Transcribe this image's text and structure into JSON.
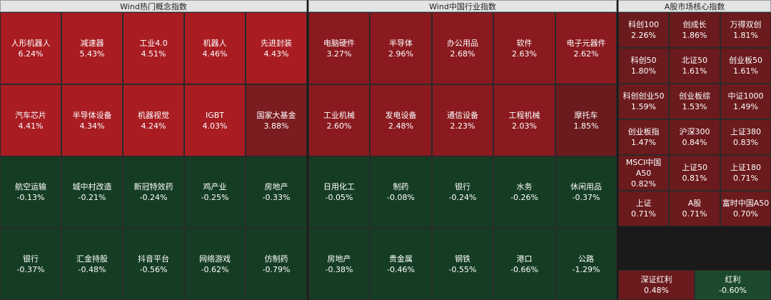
{
  "panels": {
    "concept": {
      "title": "Wind热门概念指数",
      "rows": [
        [
          {
            "name": "人形机器人",
            "pct": "6.24%"
          },
          {
            "name": "减速器",
            "pct": "5.43%"
          },
          {
            "name": "工业4.0",
            "pct": "4.51%"
          },
          {
            "name": "机器人",
            "pct": "4.46%"
          },
          {
            "name": "先进封装",
            "pct": "4.43%"
          }
        ],
        [
          {
            "name": "汽车芯片",
            "pct": "4.41%"
          },
          {
            "name": "半导体设备",
            "pct": "4.34%"
          },
          {
            "name": "机器视觉",
            "pct": "4.24%"
          },
          {
            "name": "IGBT",
            "pct": "4.03%"
          },
          {
            "name": "国家大基金",
            "pct": "3.88%"
          }
        ],
        [
          {
            "name": "航空运输",
            "pct": "-0.13%"
          },
          {
            "name": "城中村改造",
            "pct": "-0.21%"
          },
          {
            "name": "新冠特效药",
            "pct": "-0.24%"
          },
          {
            "name": "鸡产业",
            "pct": "-0.25%"
          },
          {
            "name": "房地产",
            "pct": "-0.33%"
          }
        ],
        [
          {
            "name": "银行",
            "pct": "-0.37%"
          },
          {
            "name": "汇金持股",
            "pct": "-0.48%"
          },
          {
            "name": "抖音平台",
            "pct": "-0.56%"
          },
          {
            "name": "网络游戏",
            "pct": "-0.62%"
          },
          {
            "name": "仿制药",
            "pct": "-0.79%"
          }
        ]
      ]
    },
    "industry": {
      "title": "Wind中国行业指数",
      "rows": [
        [
          {
            "name": "电脑硬件",
            "pct": "3.27%"
          },
          {
            "name": "半导体",
            "pct": "2.96%"
          },
          {
            "name": "办公用品",
            "pct": "2.68%"
          },
          {
            "name": "软件",
            "pct": "2.63%"
          },
          {
            "name": "电子元器件",
            "pct": "2.62%"
          }
        ],
        [
          {
            "name": "工业机械",
            "pct": "2.60%"
          },
          {
            "name": "发电设备",
            "pct": "2.48%"
          },
          {
            "name": "通信设备",
            "pct": "2.23%"
          },
          {
            "name": "工程机械",
            "pct": "2.03%"
          },
          {
            "name": "摩托车",
            "pct": "1.85%"
          }
        ],
        [
          {
            "name": "日用化工",
            "pct": "-0.05%"
          },
          {
            "name": "制药",
            "pct": "-0.08%"
          },
          {
            "name": "银行",
            "pct": "-0.24%"
          },
          {
            "name": "水务",
            "pct": "-0.26%"
          },
          {
            "name": "休闲用品",
            "pct": "-0.37%"
          }
        ],
        [
          {
            "name": "房地产",
            "pct": "-0.38%"
          },
          {
            "name": "贵金属",
            "pct": "-0.46%"
          },
          {
            "name": "钢铁",
            "pct": "-0.55%"
          },
          {
            "name": "港口",
            "pct": "-0.66%"
          },
          {
            "name": "公路",
            "pct": "-1.29%"
          }
        ]
      ]
    },
    "core": {
      "title": "A股市场核心指数",
      "rows": [
        [
          {
            "name": "科创100",
            "pct": "2.26%"
          },
          {
            "name": "创成长",
            "pct": "1.86%"
          },
          {
            "name": "万得双创",
            "pct": "1.81%"
          }
        ],
        [
          {
            "name": "科创50",
            "pct": "1.80%"
          },
          {
            "name": "北证50",
            "pct": "1.61%"
          },
          {
            "name": "创业板50",
            "pct": "1.61%"
          }
        ],
        [
          {
            "name": "科创创业50",
            "pct": "1.59%"
          },
          {
            "name": "创业板综",
            "pct": "1.53%"
          },
          {
            "name": "中证1000",
            "pct": "1.49%"
          }
        ],
        [
          {
            "name": "创业板指",
            "pct": "1.47%"
          },
          {
            "name": "沪深300",
            "pct": "0.84%"
          },
          {
            "name": "上证380",
            "pct": "0.83%"
          }
        ],
        [
          {
            "name": "MSCI中国A50",
            "pct": "0.82%"
          },
          {
            "name": "上证50",
            "pct": "0.81%"
          },
          {
            "name": "上证180",
            "pct": "0.71%"
          }
        ],
        [
          {
            "name": "上证",
            "pct": "0.71%"
          },
          {
            "name": "A股",
            "pct": "0.71%"
          },
          {
            "name": "富时中国A50",
            "pct": "0.70%"
          }
        ],
        [
          {
            "name": "深证红利",
            "pct": "0.48%"
          },
          {
            "name": "红利",
            "pct": "-0.60%"
          }
        ]
      ]
    }
  }
}
